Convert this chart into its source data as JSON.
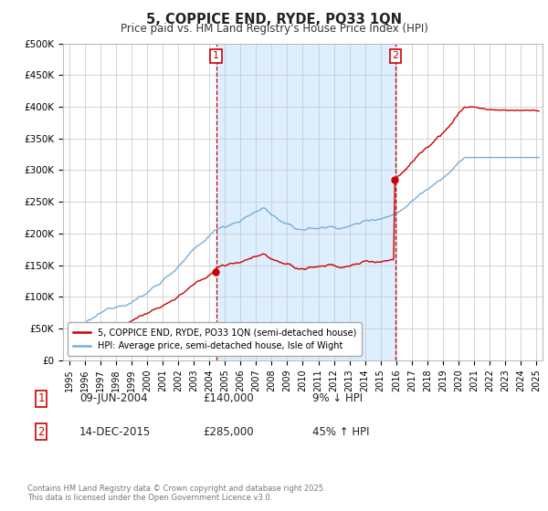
{
  "title": "5, COPPICE END, RYDE, PO33 1QN",
  "subtitle": "Price paid vs. HM Land Registry's House Price Index (HPI)",
  "legend_line1": "5, COPPICE END, RYDE, PO33 1QN (semi-detached house)",
  "legend_line2": "HPI: Average price, semi-detached house, Isle of Wight",
  "footnote": "Contains HM Land Registry data © Crown copyright and database right 2025.\nThis data is licensed under the Open Government Licence v3.0.",
  "sale1_date": "09-JUN-2004",
  "sale1_price": "£140,000",
  "sale1_hpi": "9% ↓ HPI",
  "sale2_date": "14-DEC-2015",
  "sale2_price": "£285,000",
  "sale2_hpi": "45% ↑ HPI",
  "sale1_x": 2004.44,
  "sale2_x": 2015.95,
  "sale1_y": 140000,
  "sale2_y": 285000,
  "ylim": [
    0,
    500000
  ],
  "yticks": [
    0,
    50000,
    100000,
    150000,
    200000,
    250000,
    300000,
    350000,
    400000,
    450000,
    500000
  ],
  "ytick_labels": [
    "£0",
    "£50K",
    "£100K",
    "£150K",
    "£200K",
    "£250K",
    "£300K",
    "£350K",
    "£400K",
    "£450K",
    "£500K"
  ],
  "line_color_red": "#cc0000",
  "line_color_blue": "#7aadd4",
  "shaded_region_color": "#ddeeff",
  "grid_color": "#cccccc",
  "background_color": "#ffffff",
  "sale_box_color": "#cc0000",
  "xlim_left": 1994.6,
  "xlim_right": 2025.4
}
